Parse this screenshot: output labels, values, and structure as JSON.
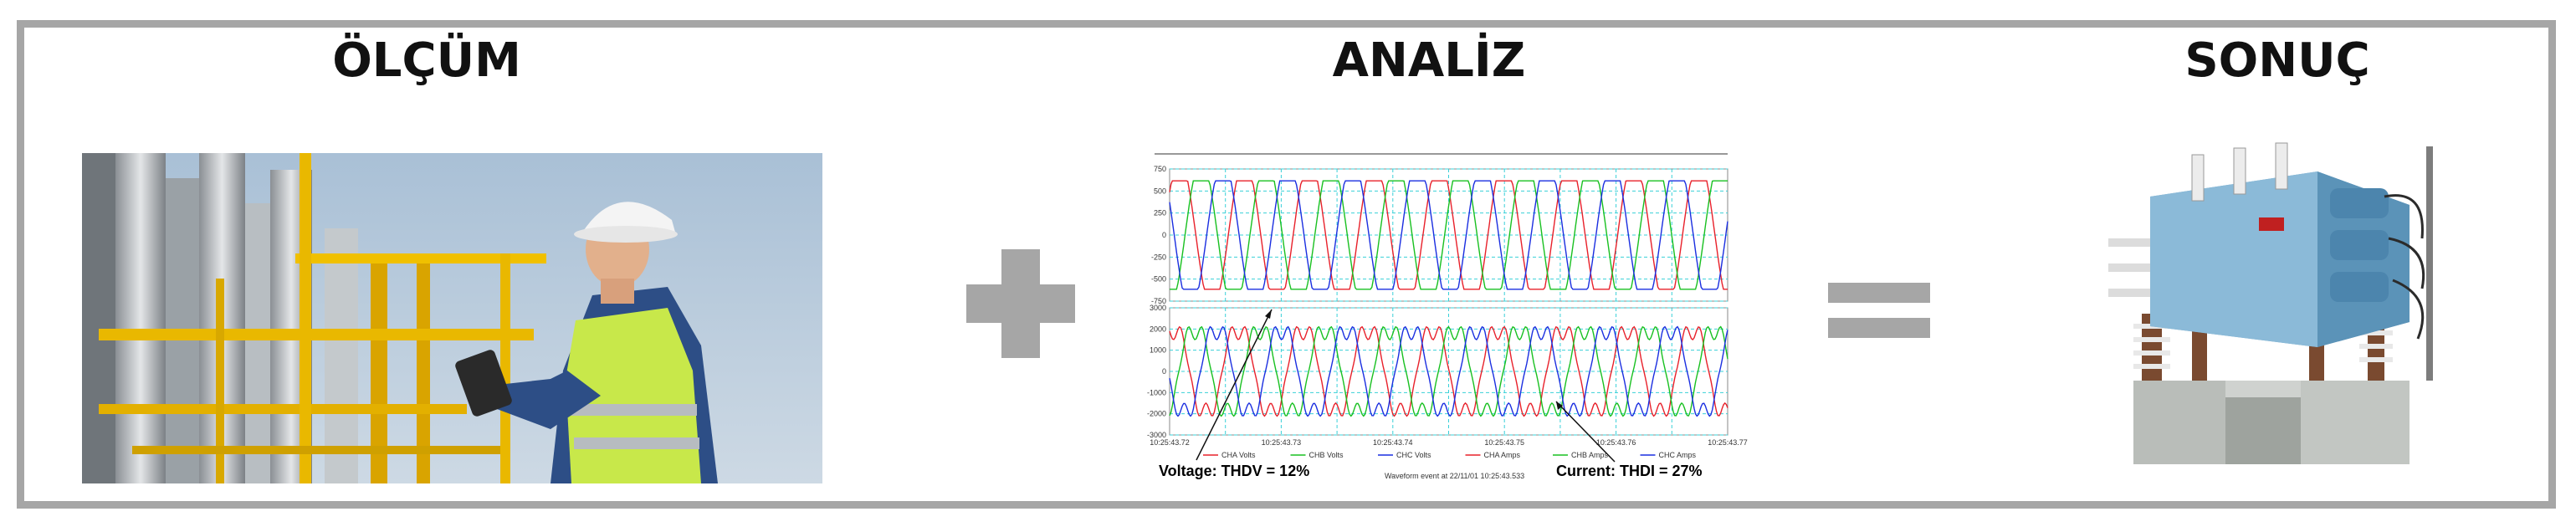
{
  "headings": {
    "measure": "ÖLÇÜM",
    "analysis": "ANALİZ",
    "result": "SONUÇ"
  },
  "operators": {
    "plus": "plus-icon",
    "equals": "equals-icon"
  },
  "photos": {
    "measure": "engineer-with-meter-photo",
    "result": "harmonic-filter-equipment-photo"
  },
  "chart": {
    "voltage_label": "Voltage: THDV = 12%",
    "current_label": "Current: THDI = 27%",
    "footer": "Waveform event at 22/11/01 10:25:43.533",
    "x_ticks": [
      "10:25:43.72",
      "10:25:43.73",
      "10:25:43.74",
      "10:25:43.75",
      "10:25:43.76",
      "10:25:43.77"
    ],
    "top_y_ticks": [
      "750",
      "500",
      "250",
      "0",
      "-250",
      "-500",
      "-750"
    ],
    "bottom_y_ticks": [
      "3000",
      "2000",
      "1000",
      "0",
      "-1000",
      "-2000",
      "-3000"
    ],
    "legend": [
      "CHA Volts",
      "CHB Volts",
      "CHC Volts",
      "CHA Amps",
      "CHB Amps",
      "CHC Amps"
    ],
    "colors": {
      "a": "#e8202a",
      "b": "#18c020",
      "c": "#1a2ee0",
      "grid": "#39d0d8"
    }
  }
}
